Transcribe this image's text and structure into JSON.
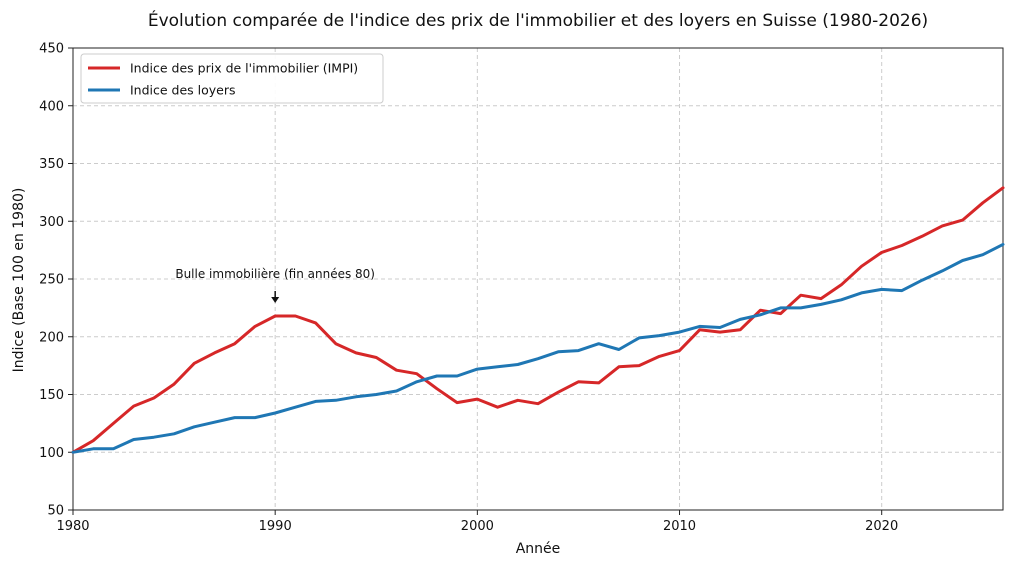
{
  "chart_data": {
    "type": "line",
    "title": "Évolution comparée de l'indice des prix de l'immobilier et des loyers en Suisse (1980-2026)",
    "xlabel": "Année",
    "ylabel": "Indice (Base 100 en 1980)",
    "xlim": [
      1980,
      2026
    ],
    "ylim": [
      50,
      450
    ],
    "x_ticks": [
      1980,
      1990,
      2000,
      2010,
      2020
    ],
    "y_ticks": [
      50,
      100,
      150,
      200,
      250,
      300,
      350,
      400,
      450
    ],
    "grid": true,
    "legend_position": "top-left",
    "x": [
      1980,
      1981,
      1982,
      1983,
      1984,
      1985,
      1986,
      1987,
      1988,
      1989,
      1990,
      1991,
      1992,
      1993,
      1994,
      1995,
      1996,
      1997,
      1998,
      1999,
      2000,
      2001,
      2002,
      2003,
      2004,
      2005,
      2006,
      2007,
      2008,
      2009,
      2010,
      2011,
      2012,
      2013,
      2014,
      2015,
      2016,
      2017,
      2018,
      2019,
      2020,
      2021,
      2022,
      2023,
      2024,
      2025,
      2026
    ],
    "series": [
      {
        "name": "Indice des prix de l'immobilier (IMPI)",
        "color": "#d62728",
        "values": [
          100,
          110,
          125,
          140,
          147,
          159,
          177,
          186,
          194,
          209,
          218,
          218,
          212,
          194,
          186,
          182,
          171,
          168,
          155,
          143,
          146,
          139,
          145,
          142,
          152,
          161,
          160,
          174,
          175,
          183,
          188,
          206,
          204,
          206,
          223,
          220,
          236,
          233,
          245,
          261,
          273,
          279,
          287,
          296,
          301,
          316,
          329
        ]
      },
      {
        "name": "Indice des loyers",
        "color": "#1f77b4",
        "values": [
          100,
          103,
          103,
          111,
          113,
          116,
          122,
          126,
          130,
          130,
          134,
          139,
          144,
          145,
          148,
          150,
          153,
          161,
          166,
          166,
          172,
          174,
          176,
          181,
          187,
          188,
          194,
          189,
          199,
          201,
          204,
          209,
          208,
          215,
          219,
          225,
          225,
          228,
          232,
          238,
          241,
          240,
          249,
          257,
          266,
          271,
          280
        ]
      }
    ],
    "annotations": [
      {
        "text": "Bulle immobilière (fin années 80)",
        "x": 1990,
        "y": 218,
        "text_y": 250
      }
    ]
  }
}
